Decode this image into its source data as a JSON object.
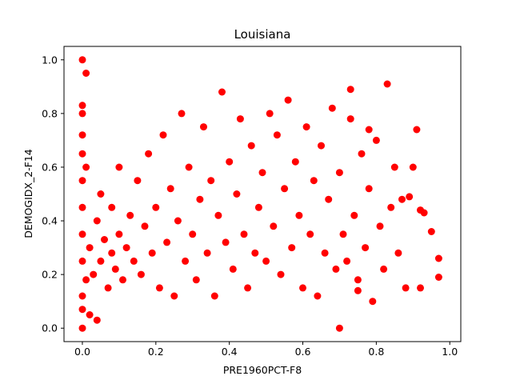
{
  "chart_data": {
    "type": "scatter",
    "title": "Louisiana",
    "xlabel": "PRE1960PCT-F8",
    "ylabel": "DEMOGIDX_2-F14",
    "xlim": [
      -0.05,
      1.03
    ],
    "ylim": [
      -0.05,
      1.05
    ],
    "xticks": [
      0.0,
      0.2,
      0.4,
      0.6,
      0.8,
      1.0
    ],
    "xtick_labels": [
      "0.0",
      "0.2",
      "0.4",
      "0.6",
      "0.8",
      "1.0"
    ],
    "yticks": [
      0.0,
      0.2,
      0.4,
      0.6,
      0.8,
      1.0
    ],
    "ytick_labels": [
      "0.0",
      "0.2",
      "0.4",
      "0.6",
      "0.8",
      "1.0"
    ],
    "grid": false,
    "legend": "none",
    "marker_color": "#ff0000",
    "series": [
      {
        "points": [
          [
            0.0,
            0.0
          ],
          [
            0.0,
            1.0
          ],
          [
            0.01,
            0.95
          ],
          [
            0.7,
            0.0
          ],
          [
            0.02,
            0.05
          ],
          [
            0.04,
            0.03
          ],
          [
            0.0,
            0.07
          ],
          [
            0.0,
            0.12
          ],
          [
            0.01,
            0.18
          ],
          [
            0.0,
            0.25
          ],
          [
            0.0,
            0.35
          ],
          [
            0.0,
            0.45
          ],
          [
            0.0,
            0.55
          ],
          [
            0.0,
            0.65
          ],
          [
            0.0,
            0.72
          ],
          [
            0.0,
            0.8
          ],
          [
            0.0,
            0.83
          ],
          [
            0.01,
            0.6
          ],
          [
            0.02,
            0.3
          ],
          [
            0.03,
            0.2
          ],
          [
            0.04,
            0.4
          ],
          [
            0.05,
            0.25
          ],
          [
            0.05,
            0.5
          ],
          [
            0.06,
            0.33
          ],
          [
            0.07,
            0.15
          ],
          [
            0.08,
            0.28
          ],
          [
            0.08,
            0.45
          ],
          [
            0.09,
            0.22
          ],
          [
            0.1,
            0.35
          ],
          [
            0.1,
            0.6
          ],
          [
            0.11,
            0.18
          ],
          [
            0.12,
            0.3
          ],
          [
            0.13,
            0.42
          ],
          [
            0.14,
            0.25
          ],
          [
            0.15,
            0.55
          ],
          [
            0.16,
            0.2
          ],
          [
            0.17,
            0.38
          ],
          [
            0.18,
            0.65
          ],
          [
            0.19,
            0.28
          ],
          [
            0.2,
            0.45
          ],
          [
            0.21,
            0.15
          ],
          [
            0.22,
            0.72
          ],
          [
            0.23,
            0.32
          ],
          [
            0.24,
            0.52
          ],
          [
            0.25,
            0.12
          ],
          [
            0.26,
            0.4
          ],
          [
            0.27,
            0.8
          ],
          [
            0.28,
            0.25
          ],
          [
            0.29,
            0.6
          ],
          [
            0.3,
            0.35
          ],
          [
            0.31,
            0.18
          ],
          [
            0.32,
            0.48
          ],
          [
            0.33,
            0.75
          ],
          [
            0.34,
            0.28
          ],
          [
            0.35,
            0.55
          ],
          [
            0.36,
            0.12
          ],
          [
            0.37,
            0.42
          ],
          [
            0.38,
            0.88
          ],
          [
            0.39,
            0.32
          ],
          [
            0.4,
            0.62
          ],
          [
            0.41,
            0.22
          ],
          [
            0.42,
            0.5
          ],
          [
            0.43,
            0.78
          ],
          [
            0.44,
            0.35
          ],
          [
            0.45,
            0.15
          ],
          [
            0.46,
            0.68
          ],
          [
            0.47,
            0.28
          ],
          [
            0.48,
            0.45
          ],
          [
            0.49,
            0.58
          ],
          [
            0.5,
            0.25
          ],
          [
            0.51,
            0.8
          ],
          [
            0.52,
            0.38
          ],
          [
            0.53,
            0.72
          ],
          [
            0.54,
            0.2
          ],
          [
            0.55,
            0.52
          ],
          [
            0.56,
            0.85
          ],
          [
            0.57,
            0.3
          ],
          [
            0.58,
            0.62
          ],
          [
            0.59,
            0.42
          ],
          [
            0.6,
            0.15
          ],
          [
            0.61,
            0.75
          ],
          [
            0.62,
            0.35
          ],
          [
            0.63,
            0.55
          ],
          [
            0.64,
            0.12
          ],
          [
            0.65,
            0.68
          ],
          [
            0.66,
            0.28
          ],
          [
            0.67,
            0.48
          ],
          [
            0.68,
            0.82
          ],
          [
            0.69,
            0.22
          ],
          [
            0.7,
            0.58
          ],
          [
            0.71,
            0.35
          ],
          [
            0.72,
            0.25
          ],
          [
            0.73,
            0.78
          ],
          [
            0.74,
            0.42
          ],
          [
            0.75,
            0.18
          ],
          [
            0.76,
            0.65
          ],
          [
            0.77,
            0.3
          ],
          [
            0.78,
            0.52
          ],
          [
            0.79,
            0.1
          ],
          [
            0.8,
            0.7
          ],
          [
            0.81,
            0.38
          ],
          [
            0.82,
            0.22
          ],
          [
            0.83,
            0.91
          ],
          [
            0.84,
            0.45
          ],
          [
            0.85,
            0.6
          ],
          [
            0.86,
            0.28
          ],
          [
            0.87,
            0.48
          ],
          [
            0.88,
            0.15
          ],
          [
            0.9,
            0.6
          ],
          [
            0.91,
            0.74
          ],
          [
            0.92,
            0.44
          ],
          [
            0.93,
            0.43
          ],
          [
            0.95,
            0.36
          ],
          [
            0.97,
            0.26
          ],
          [
            0.97,
            0.19
          ],
          [
            0.92,
            0.15
          ],
          [
            0.73,
            0.89
          ],
          [
            0.75,
            0.14
          ],
          [
            0.89,
            0.49
          ],
          [
            0.78,
            0.74
          ]
        ]
      }
    ]
  }
}
